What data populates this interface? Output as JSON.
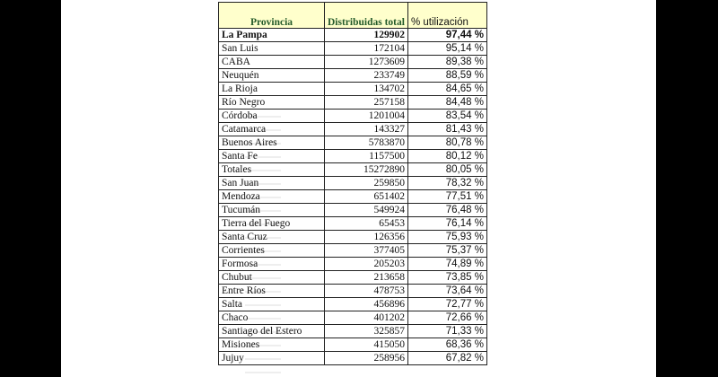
{
  "table": {
    "headers": {
      "provincia": "Provincia",
      "distribuidas": "Distribuidas total",
      "utilizacion": "% utilización"
    },
    "rows": [
      {
        "provincia": "La Pampa",
        "distribuidas": "129902",
        "utilizacion": "97,44 %"
      },
      {
        "provincia": "San Luis",
        "distribuidas": "172104",
        "utilizacion": "95,14 %"
      },
      {
        "provincia": "CABA",
        "distribuidas": "1273609",
        "utilizacion": "89,38 %"
      },
      {
        "provincia": "Neuquén",
        "distribuidas": "233749",
        "utilizacion": "88,59 %"
      },
      {
        "provincia": "La Rioja",
        "distribuidas": "134702",
        "utilizacion": "84,65 %"
      },
      {
        "provincia": "Río Negro",
        "distribuidas": "257158",
        "utilizacion": "84,48 %"
      },
      {
        "provincia": "Córdoba",
        "distribuidas": "1201004",
        "utilizacion": "83,54 %"
      },
      {
        "provincia": "Catamarca",
        "distribuidas": "143327",
        "utilizacion": "81,43 %"
      },
      {
        "provincia": "Buenos Aires",
        "distribuidas": "5783870",
        "utilizacion": "80,78 %"
      },
      {
        "provincia": "Santa Fe",
        "distribuidas": "1157500",
        "utilizacion": "80,12 %"
      },
      {
        "provincia": "Totales",
        "distribuidas": "15272890",
        "utilizacion": "80,05 %"
      },
      {
        "provincia": "San Juan",
        "distribuidas": "259850",
        "utilizacion": "78,32 %"
      },
      {
        "provincia": "Mendoza",
        "distribuidas": "651402",
        "utilizacion": "77,51 %"
      },
      {
        "provincia": "Tucumán",
        "distribuidas": "549924",
        "utilizacion": "76,48 %"
      },
      {
        "provincia": "Tierra del Fuego",
        "distribuidas": "65453",
        "utilizacion": "76,14 %"
      },
      {
        "provincia": "Santa Cruz",
        "distribuidas": "126356",
        "utilizacion": "75,93 %"
      },
      {
        "provincia": "Corrientes",
        "distribuidas": "377405",
        "utilizacion": "75,37 %"
      },
      {
        "provincia": "Formosa",
        "distribuidas": "205203",
        "utilizacion": "74,89 %"
      },
      {
        "provincia": "Chubut",
        "distribuidas": "213658",
        "utilizacion": "73,85 %"
      },
      {
        "provincia": "Entre Ríos",
        "distribuidas": "478753",
        "utilizacion": "73,64 %"
      },
      {
        "provincia": "Salta",
        "distribuidas": "456896",
        "utilizacion": "72,77 %"
      },
      {
        "provincia": "Chaco",
        "distribuidas": "401202",
        "utilizacion": "72,66 %"
      },
      {
        "provincia": "Santiago del Estero",
        "distribuidas": "325857",
        "utilizacion": "71,33 %"
      },
      {
        "provincia": "Misiones",
        "distribuidas": "415050",
        "utilizacion": "68,36 %"
      },
      {
        "provincia": "Jujuy",
        "distribuidas": "258956",
        "utilizacion": "67,82 %"
      }
    ]
  },
  "colors": {
    "header_background": "#ffffcc",
    "header_text": "#245a2a",
    "backdrop": "#000000"
  }
}
